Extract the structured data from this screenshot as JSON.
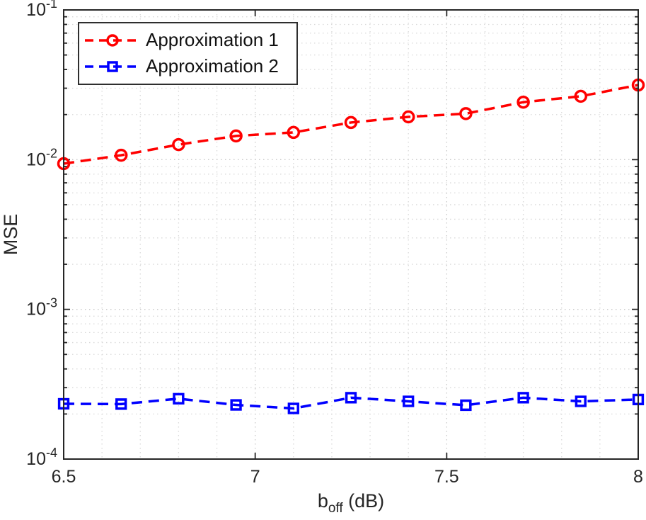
{
  "theme": {
    "background": "#ffffff",
    "axis_color": "#262626",
    "text_color": "#262626",
    "grid_color": "#c9c9c9",
    "minor_grid_color": "#d9d9d9",
    "legend_border_color": "#2e2e2e",
    "legend_text_color": "#111111"
  },
  "axes": {
    "xlabel_base": "b",
    "xlabel_sub": "off",
    "xlabel_rest": " (dB)",
    "ylabel": "MSE",
    "x_ticks": [
      6.5,
      7,
      7.5,
      8
    ],
    "x_tick_labels": [
      "6.5",
      "7",
      "7.5",
      "8"
    ],
    "y_tick_base": "10",
    "y_tick_exponents": [
      "-1",
      "-2",
      "-3",
      "-4"
    ],
    "x_minor_grid_step": 0.1
  },
  "chart_data": {
    "type": "line",
    "title": "",
    "xlabel": "b_off (dB)",
    "ylabel": "MSE",
    "x_scale": "linear",
    "y_scale": "log",
    "xlim": [
      6.5,
      8
    ],
    "ylim": [
      0.0001,
      0.1
    ],
    "grid": true,
    "minor_grid": true,
    "legend_position": "top-left",
    "x": [
      6.5,
      6.65,
      6.8,
      6.95,
      7.1,
      7.25,
      7.4,
      7.55,
      7.7,
      7.85,
      8.0
    ],
    "series": [
      {
        "name": "Approximation 1",
        "color": "#ff0000",
        "marker": "circle",
        "linestyle": "dashed",
        "values": [
          0.0094,
          0.0107,
          0.0126,
          0.0144,
          0.0152,
          0.0177,
          0.0193,
          0.0203,
          0.0242,
          0.0265,
          0.0315
        ]
      },
      {
        "name": "Approximation 2",
        "color": "#0000ff",
        "marker": "square",
        "linestyle": "dashed",
        "values": [
          0.000234,
          0.000233,
          0.000253,
          0.00023,
          0.000218,
          0.000257,
          0.000243,
          0.000229,
          0.000257,
          0.000243,
          0.00025
        ]
      }
    ]
  }
}
